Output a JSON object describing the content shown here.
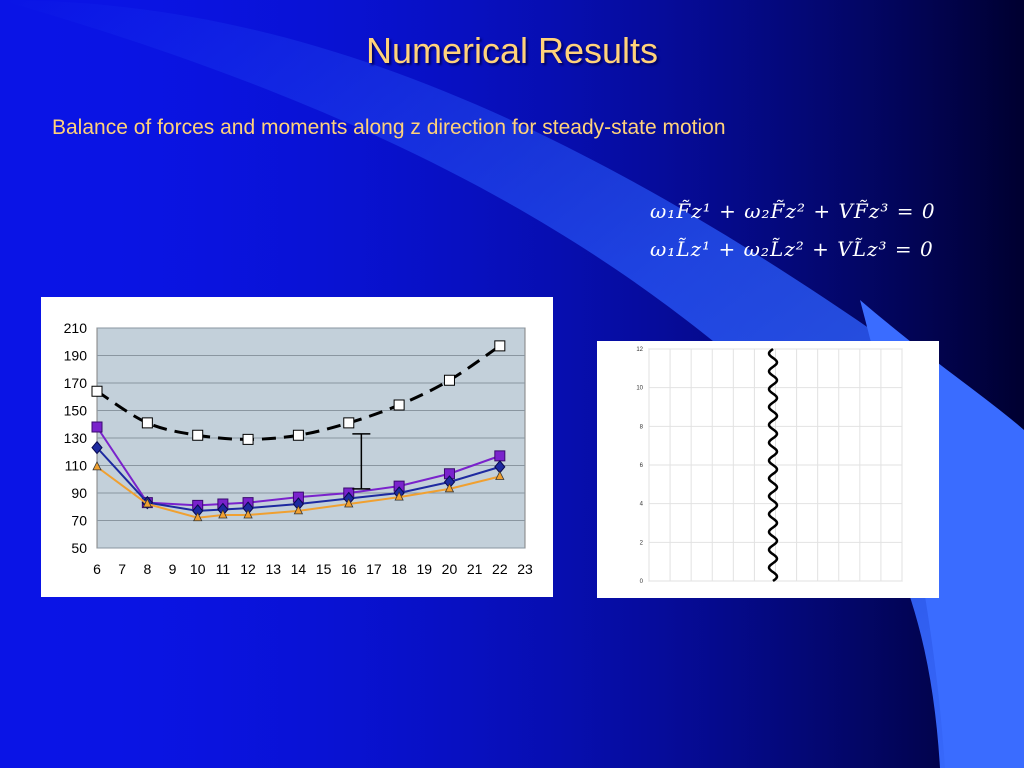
{
  "slide": {
    "title": "Numerical Results",
    "subtitle": "Balance of forces and moments along z direction for steady-state motion",
    "equations": [
      {
        "left": "ω₁F̃z¹ + ω₂F̃z² + VF̃z³",
        "right": "= 0"
      },
      {
        "left": "ω₁L̃z¹ + ω₂L̃z² + VL̃z³",
        "right": "= 0"
      }
    ],
    "colors": {
      "background": "#0a14e6",
      "accent_light": "#3a6cff",
      "accent_dark": "#000040",
      "title_text": "#ffd27a",
      "equation_text": "#ffffff"
    }
  },
  "chart_data": [
    {
      "type": "line",
      "title": "",
      "xlabel": "",
      "ylabel": "",
      "x_ticks": [
        6,
        7,
        8,
        9,
        10,
        11,
        12,
        13,
        14,
        15,
        16,
        17,
        18,
        19,
        20,
        21,
        22,
        23
      ],
      "y_ticks": [
        50,
        70,
        90,
        110,
        130,
        150,
        170,
        190,
        210
      ],
      "xlim": [
        6,
        23
      ],
      "ylim": [
        50,
        210
      ],
      "grid": true,
      "plot_background": "#c3d0da",
      "series": [
        {
          "style": "dashed",
          "color": "#000000",
          "marker": "square-open",
          "x": [
            6,
            8,
            10,
            12,
            14,
            16,
            18,
            20,
            22
          ],
          "y": [
            164,
            141,
            132,
            129,
            132,
            141,
            154,
            172,
            197
          ]
        },
        {
          "color": "#7a22cc",
          "marker": "square",
          "x": [
            6,
            8,
            10,
            11,
            12,
            14,
            16,
            18,
            20,
            22
          ],
          "y": [
            138,
            83,
            81,
            82,
            83,
            87,
            90,
            95,
            104,
            117
          ]
        },
        {
          "color": "#1e2aa0",
          "marker": "diamond",
          "x": [
            6,
            8,
            10,
            11,
            12,
            14,
            16,
            18,
            20,
            22
          ],
          "y": [
            123,
            83,
            77,
            78,
            79,
            82,
            86,
            90,
            98,
            109
          ]
        },
        {
          "color": "#f0a030",
          "marker": "triangle",
          "x": [
            6,
            8,
            10,
            11,
            12,
            14,
            16,
            18,
            20,
            22
          ],
          "y": [
            109,
            82,
            72,
            74,
            74,
            77,
            82,
            87,
            93,
            102
          ]
        }
      ],
      "annotations": [
        {
          "type": "error-bar",
          "x": 16.5,
          "y_low": 93,
          "y_high": 133
        }
      ]
    },
    {
      "type": "line",
      "title": "",
      "xlabel": "",
      "ylabel": "",
      "y_ticks": [
        0,
        2,
        4,
        6,
        8,
        10,
        12
      ],
      "ylim": [
        0,
        12
      ],
      "grid": true,
      "series": [
        {
          "color": "#000000",
          "style": "wavy-vertical",
          "x_center": 0,
          "amplitude": 0.2,
          "waves": 13,
          "y_range": [
            0,
            12
          ]
        }
      ]
    }
  ]
}
